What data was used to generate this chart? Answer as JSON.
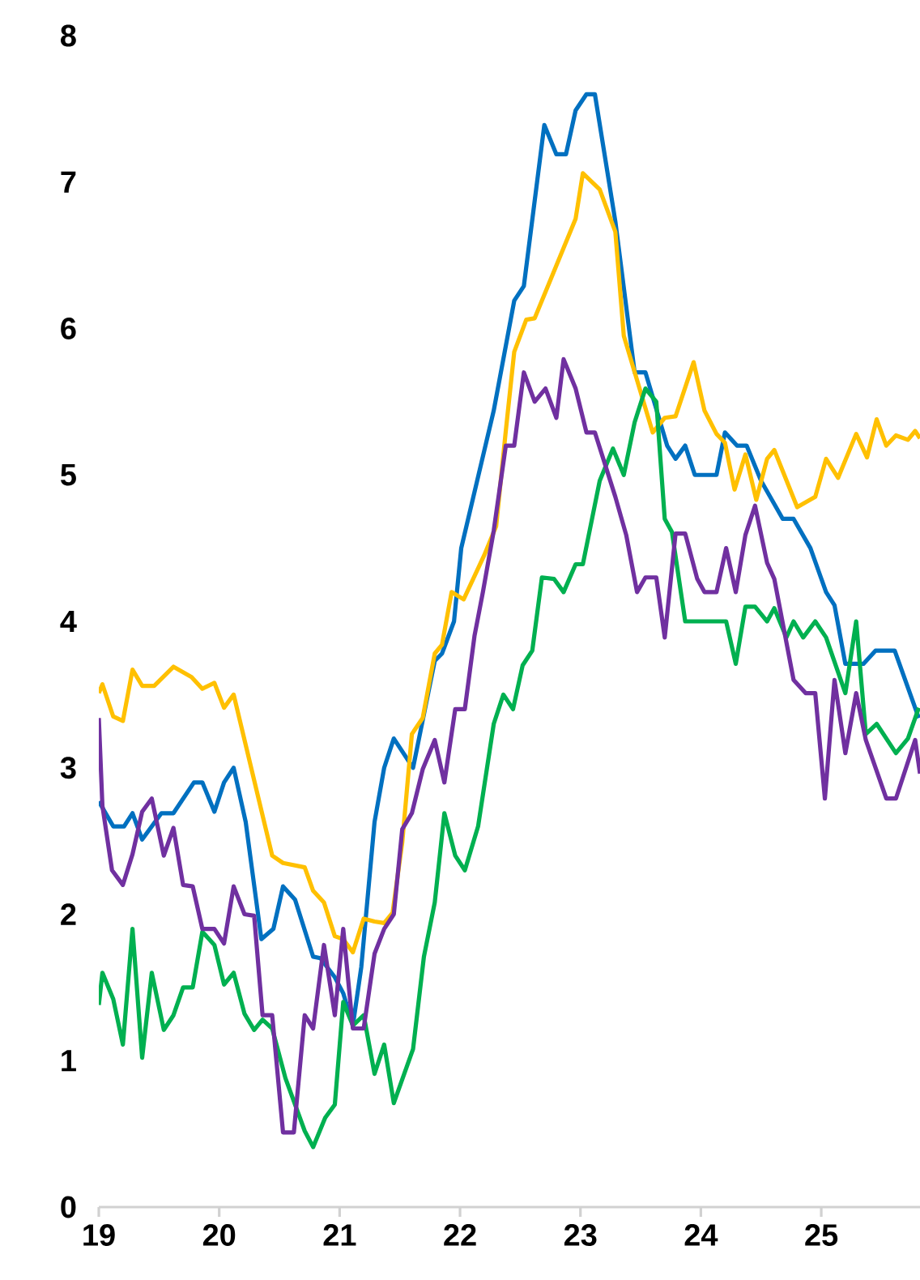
{
  "chart_data": {
    "type": "line",
    "xlim": [
      2019,
      2025.82
    ],
    "ylim": [
      0,
      8
    ],
    "xticks": [
      {
        "value": 2019,
        "label": "19"
      },
      {
        "value": 2020,
        "label": "20"
      },
      {
        "value": 2021,
        "label": "21"
      },
      {
        "value": 2022,
        "label": "22"
      },
      {
        "value": 2023,
        "label": "23"
      },
      {
        "value": 2024,
        "label": "24"
      },
      {
        "value": 2025,
        "label": "25"
      }
    ],
    "yticks": [
      0,
      1,
      2,
      3,
      4,
      5,
      6,
      7,
      8
    ],
    "series": [
      {
        "color": "#0070c0",
        "x": [
          2019.0,
          2019.12,
          2019.21,
          2019.28,
          2019.36,
          2019.52,
          2019.62,
          2019.79,
          2019.86,
          2019.96,
          2020.04,
          2020.12,
          2020.22,
          2020.35,
          2020.45,
          2020.53,
          2020.63,
          2020.78,
          2020.84,
          2020.96,
          2021.03,
          2021.11,
          2021.18,
          2021.29,
          2021.37,
          2021.45,
          2021.61,
          2021.79,
          2021.85,
          2021.95,
          2022.01,
          2022.28,
          2022.45,
          2022.53,
          2022.7,
          2022.8,
          2022.88,
          2022.96,
          2023.05,
          2023.12,
          2023.29,
          2023.45,
          2023.54,
          2023.72,
          2023.79,
          2023.87,
          2023.95,
          2024.13,
          2024.2,
          2024.3,
          2024.38,
          2024.5,
          2024.68,
          2024.77,
          2024.91,
          2025.04,
          2025.11,
          2025.2,
          2025.35,
          2025.45,
          2025.61,
          2025.81
        ],
        "values": [
          2.77,
          2.6,
          2.6,
          2.69,
          2.51,
          2.69,
          2.69,
          2.9,
          2.9,
          2.7,
          2.9,
          3.0,
          2.63,
          1.83,
          1.9,
          2.19,
          2.1,
          1.71,
          1.7,
          1.57,
          1.46,
          1.24,
          1.64,
          2.63,
          3.0,
          3.2,
          3.0,
          3.73,
          3.78,
          4.0,
          4.5,
          5.44,
          6.19,
          6.29,
          7.39,
          7.19,
          7.19,
          7.49,
          7.6,
          7.6,
          6.73,
          5.7,
          5.7,
          5.2,
          5.11,
          5.2,
          5.0,
          5.0,
          5.29,
          5.2,
          5.2,
          4.96,
          4.7,
          4.7,
          4.5,
          4.2,
          4.11,
          3.71,
          3.71,
          3.8,
          3.8,
          3.34
        ]
      },
      {
        "color": "#ffc000",
        "x": [
          2019.0,
          2019.03,
          2019.12,
          2019.2,
          2019.28,
          2019.36,
          2019.46,
          2019.62,
          2019.77,
          2019.86,
          2019.96,
          2020.04,
          2020.12,
          2020.44,
          2020.53,
          2020.71,
          2020.78,
          2020.87,
          2020.96,
          2021.03,
          2021.11,
          2021.2,
          2021.29,
          2021.37,
          2021.44,
          2021.52,
          2021.6,
          2021.69,
          2021.79,
          2021.85,
          2021.93,
          2022.03,
          2022.2,
          2022.3,
          2022.38,
          2022.45,
          2022.55,
          2022.62,
          2022.96,
          2023.02,
          2023.16,
          2023.29,
          2023.36,
          2023.6,
          2023.7,
          2023.79,
          2023.94,
          2024.03,
          2024.13,
          2024.2,
          2024.28,
          2024.37,
          2024.46,
          2024.55,
          2024.61,
          2024.8,
          2024.95,
          2025.04,
          2025.14,
          2025.29,
          2025.38,
          2025.46,
          2025.54,
          2025.62,
          2025.72,
          2025.78,
          2025.82
        ],
        "values": [
          3.51,
          3.57,
          3.35,
          3.32,
          3.67,
          3.56,
          3.56,
          3.69,
          3.62,
          3.54,
          3.58,
          3.41,
          3.5,
          2.4,
          2.35,
          2.32,
          2.16,
          2.08,
          1.85,
          1.83,
          1.74,
          1.97,
          1.95,
          1.94,
          2.01,
          2.49,
          3.23,
          3.34,
          3.78,
          3.84,
          4.2,
          4.15,
          4.45,
          4.65,
          5.3,
          5.84,
          6.06,
          6.07,
          6.75,
          7.06,
          6.95,
          6.66,
          5.95,
          5.29,
          5.39,
          5.4,
          5.77,
          5.44,
          5.28,
          5.22,
          4.9,
          5.14,
          4.83,
          5.11,
          5.17,
          4.78,
          4.85,
          5.11,
          4.98,
          5.28,
          5.12,
          5.38,
          5.2,
          5.27,
          5.24,
          5.3,
          5.25
        ]
      },
      {
        "color": "#00b050",
        "x": [
          2019.0,
          2019.03,
          2019.12,
          2019.2,
          2019.28,
          2019.36,
          2019.44,
          2019.54,
          2019.62,
          2019.7,
          2019.78,
          2019.86,
          2019.96,
          2020.04,
          2020.12,
          2020.21,
          2020.29,
          2020.36,
          2020.44,
          2020.55,
          2020.63,
          2020.71,
          2020.78,
          2020.88,
          2020.96,
          2021.03,
          2021.11,
          2021.2,
          2021.29,
          2021.37,
          2021.45,
          2021.61,
          2021.7,
          2021.79,
          2021.87,
          2021.96,
          2022.04,
          2022.15,
          2022.28,
          2022.36,
          2022.44,
          2022.52,
          2022.6,
          2022.68,
          2022.78,
          2022.86,
          2022.96,
          2023.02,
          2023.16,
          2023.27,
          2023.36,
          2023.45,
          2023.54,
          2023.63,
          2023.7,
          2023.76,
          2023.87,
          2024.21,
          2024.29,
          2024.37,
          2024.45,
          2024.55,
          2024.61,
          2024.71,
          2024.77,
          2024.85,
          2024.95,
          2025.04,
          2025.2,
          2025.29,
          2025.37,
          2025.46,
          2025.62,
          2025.72,
          2025.81
        ],
        "values": [
          1.38,
          1.6,
          1.42,
          1.11,
          1.9,
          1.02,
          1.6,
          1.21,
          1.31,
          1.5,
          1.5,
          1.88,
          1.79,
          1.52,
          1.6,
          1.32,
          1.21,
          1.28,
          1.22,
          0.88,
          0.7,
          0.52,
          0.41,
          0.61,
          0.7,
          1.4,
          1.24,
          1.31,
          0.91,
          1.11,
          0.71,
          1.08,
          1.71,
          2.08,
          2.69,
          2.4,
          2.3,
          2.6,
          3.3,
          3.5,
          3.4,
          3.7,
          3.8,
          4.3,
          4.29,
          4.2,
          4.39,
          4.39,
          4.96,
          5.18,
          5.0,
          5.36,
          5.59,
          5.5,
          4.7,
          4.61,
          4.0,
          4.0,
          3.71,
          4.1,
          4.1,
          4.0,
          4.09,
          3.89,
          4.0,
          3.89,
          4.0,
          3.89,
          3.51,
          4.0,
          3.23,
          3.3,
          3.1,
          3.2,
          3.41
        ]
      },
      {
        "color": "#7030a0",
        "x": [
          2019.0,
          2019.03,
          2019.11,
          2019.2,
          2019.28,
          2019.36,
          2019.44,
          2019.54,
          2019.62,
          2019.7,
          2019.78,
          2019.86,
          2019.96,
          2020.04,
          2020.12,
          2020.21,
          2020.29,
          2020.36,
          2020.44,
          2020.53,
          2020.62,
          2020.71,
          2020.78,
          2020.87,
          2020.96,
          2021.03,
          2021.11,
          2021.2,
          2021.29,
          2021.37,
          2021.45,
          2021.52,
          2021.6,
          2021.69,
          2021.79,
          2021.87,
          2021.96,
          2022.04,
          2022.12,
          2022.19,
          2022.28,
          2022.38,
          2022.45,
          2022.53,
          2022.62,
          2022.71,
          2022.8,
          2022.86,
          2022.96,
          2023.05,
          2023.12,
          2023.29,
          2023.38,
          2023.47,
          2023.54,
          2023.63,
          2023.7,
          2023.79,
          2023.87,
          2023.97,
          2024.03,
          2024.13,
          2024.21,
          2024.29,
          2024.37,
          2024.45,
          2024.55,
          2024.61,
          2024.77,
          2024.87,
          2024.95,
          2025.03,
          2025.11,
          2025.2,
          2025.29,
          2025.37,
          2025.54,
          2025.62,
          2025.78,
          2025.82
        ],
        "values": [
          3.34,
          2.74,
          2.3,
          2.2,
          2.41,
          2.7,
          2.79,
          2.4,
          2.59,
          2.2,
          2.19,
          1.9,
          1.9,
          1.8,
          2.19,
          2.0,
          1.99,
          1.31,
          1.31,
          0.51,
          0.51,
          1.31,
          1.22,
          1.79,
          1.31,
          1.9,
          1.22,
          1.22,
          1.73,
          1.9,
          2.0,
          2.58,
          2.69,
          2.99,
          3.19,
          2.9,
          3.4,
          3.4,
          3.9,
          4.2,
          4.62,
          5.2,
          5.2,
          5.7,
          5.5,
          5.59,
          5.39,
          5.79,
          5.59,
          5.29,
          5.29,
          4.85,
          4.59,
          4.2,
          4.3,
          4.3,
          3.89,
          4.6,
          4.6,
          4.29,
          4.2,
          4.2,
          4.5,
          4.2,
          4.59,
          4.79,
          4.4,
          4.29,
          3.6,
          3.51,
          3.51,
          2.79,
          3.6,
          3.1,
          3.51,
          3.19,
          2.79,
          2.79,
          3.19,
          2.96
        ]
      }
    ]
  }
}
